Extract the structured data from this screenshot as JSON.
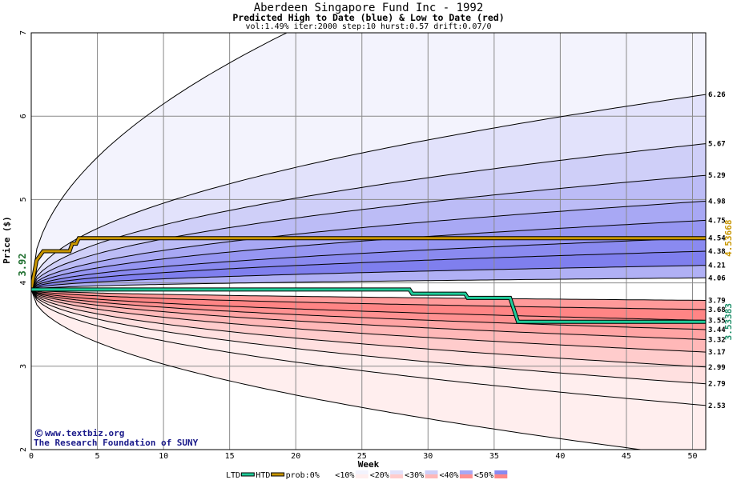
{
  "title": "Aberdeen Singapore Fund Inc - 1992",
  "subtitle": "Predicted High to Date (blue) &  Low to Date (red)",
  "params": "vol:1.49% iter:2000 step:10 hurst:0.57 drift:0.07/0",
  "watermark": {
    "line1": "www.textbiz.org",
    "line2": "The Research Foundation of SUNY",
    "symbol": "©"
  },
  "colors": {
    "htd": "#1fcc99",
    "ltd": "#c89600",
    "band_label_htd": "#c89600",
    "band_label_ltd": "#1f8f6a",
    "start_label": "#1f6f2f"
  },
  "chart_data": {
    "type": "area",
    "xlabel": "Week",
    "ylabel": "Price ($)",
    "xlim": [
      0,
      51
    ],
    "ylim": [
      2,
      7
    ],
    "xticks": [
      "0",
      "5",
      "10",
      "15",
      "20",
      "25",
      "30",
      "35",
      "40",
      "45",
      "50"
    ],
    "yticks": [
      "2",
      "3",
      "4",
      "5",
      "6",
      "7"
    ],
    "start_price_label": "3.92",
    "start_price": 3.92,
    "high_quantile_end_labels": [
      "6.26",
      "5.67",
      "5.29",
      "4.98",
      "4.75",
      "4.54",
      "4.38",
      "4.21",
      "4.06"
    ],
    "high_quantile_end_values": [
      6.26,
      5.67,
      5.29,
      4.98,
      4.75,
      4.54,
      4.38,
      4.21,
      4.06
    ],
    "low_quantile_end_labels": [
      "3.79",
      "3.68",
      "3.55",
      "3.44",
      "3.32",
      "3.17",
      "2.99",
      "2.79",
      "2.53"
    ],
    "low_quantile_end_values": [
      3.79,
      3.68,
      3.55,
      3.44,
      3.32,
      3.17,
      2.99,
      2.79,
      2.53
    ],
    "outer_high_start": 3.96,
    "outer_high_end": 8.9,
    "outer_low_end": 1.9,
    "series": [
      {
        "name": "HTD",
        "label": "4.53668",
        "points": [
          [
            0,
            3.92
          ],
          [
            0.4,
            4.27
          ],
          [
            0.9,
            4.38
          ],
          [
            2.9,
            4.38
          ],
          [
            3.1,
            4.47
          ],
          [
            3.4,
            4.47
          ],
          [
            3.6,
            4.53668
          ],
          [
            51,
            4.53668
          ]
        ]
      },
      {
        "name": "LTD",
        "label": "3.53383",
        "points": [
          [
            0,
            3.92
          ],
          [
            28.6,
            3.92
          ],
          [
            28.8,
            3.87
          ],
          [
            32.8,
            3.87
          ],
          [
            33.0,
            3.82
          ],
          [
            36.2,
            3.82
          ],
          [
            36.8,
            3.53383
          ],
          [
            51,
            3.53383
          ]
        ]
      }
    ],
    "legend": {
      "items": [
        "LTD",
        "HTD",
        "prob:0%",
        "<10%",
        "<20%",
        "<30%",
        "<40%",
        "<50%"
      ],
      "placement": "bottom"
    }
  }
}
